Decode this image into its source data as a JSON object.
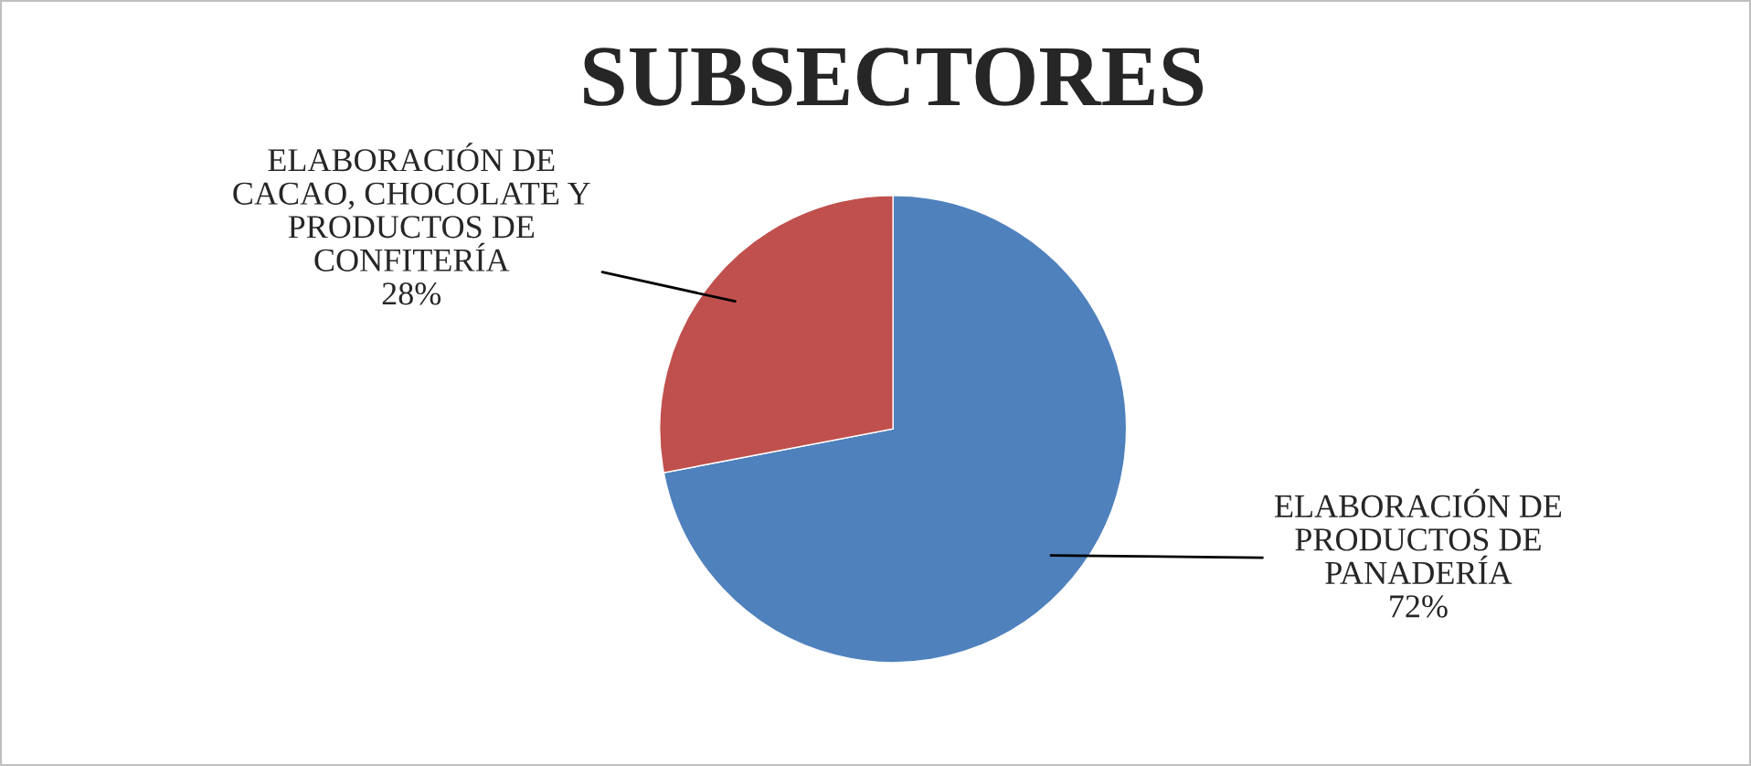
{
  "chart_data": {
    "type": "pie",
    "title": "SUBSECTORES",
    "categories": [
      "ELABORACIÓN DE PRODUCTOS DE PANADERÍA",
      "ELABORACIÓN DE CACAO, CHOCOLATE Y PRODUCTOS DE CONFITERÍA"
    ],
    "values": [
      72,
      28
    ],
    "value_labels": [
      "72%",
      "28%"
    ],
    "colors": [
      "#4f81bd",
      "#c0504d"
    ]
  }
}
